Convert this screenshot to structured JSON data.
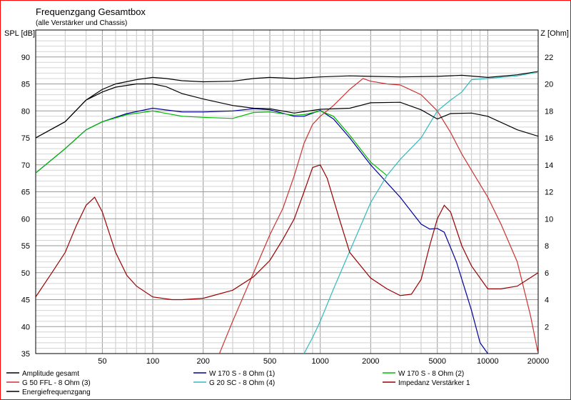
{
  "chart_data": {
    "type": "line",
    "title": "Frequenzgang Gesamtbox",
    "subtitle": "(alle Verstärker und Chassis)",
    "ylabel_left": "SPL [dB]",
    "ylabel_right": "Z [Ohm]",
    "x_scale": "log",
    "xlim": [
      20,
      20000
    ],
    "ylim_left": [
      35,
      95
    ],
    "ylim_right": [
      0,
      24
    ],
    "x_ticks": [
      {
        "v": 50,
        "label": "50"
      },
      {
        "v": 100,
        "label": "100"
      },
      {
        "v": 200,
        "label": "200"
      },
      {
        "v": 500,
        "label": "500"
      },
      {
        "v": 1000,
        "label": "1000"
      },
      {
        "v": 2000,
        "label": "2000"
      },
      {
        "v": 5000,
        "label": "5000"
      },
      {
        "v": 10000,
        "label": "10000"
      },
      {
        "v": 20000,
        "label": "20000"
      }
    ],
    "y_left_ticks": [
      35,
      40,
      45,
      50,
      55,
      60,
      65,
      70,
      75,
      80,
      85,
      90
    ],
    "y_right_ticks": [
      2,
      4,
      6,
      8,
      10,
      12,
      14,
      16,
      18,
      20,
      22
    ],
    "grid": true,
    "legend_position": "bottom",
    "series": [
      {
        "name": "Amplitude gesamt",
        "axis": "left",
        "color": "#000000",
        "points": [
          [
            20,
            75
          ],
          [
            30,
            78
          ],
          [
            40,
            82
          ],
          [
            50,
            84
          ],
          [
            60,
            85
          ],
          [
            80,
            85.8
          ],
          [
            100,
            86.2
          ],
          [
            120,
            86
          ],
          [
            150,
            85.6
          ],
          [
            200,
            85.4
          ],
          [
            300,
            85.5
          ],
          [
            400,
            86
          ],
          [
            500,
            86.2
          ],
          [
            700,
            86
          ],
          [
            1000,
            86.3
          ],
          [
            1500,
            86.5
          ],
          [
            2000,
            86.4
          ],
          [
            3000,
            86.3
          ],
          [
            5000,
            86.4
          ],
          [
            7000,
            86.6
          ],
          [
            10000,
            86.2
          ],
          [
            15000,
            86.7
          ],
          [
            20000,
            87.3
          ]
        ]
      },
      {
        "name": "W 170 S - 8 Ohm (1)",
        "axis": "left",
        "color": "#000099",
        "points": [
          [
            20,
            68.5
          ],
          [
            30,
            73
          ],
          [
            40,
            76.5
          ],
          [
            50,
            78
          ],
          [
            70,
            79.5
          ],
          [
            100,
            80.5
          ],
          [
            150,
            79.8
          ],
          [
            200,
            79.8
          ],
          [
            300,
            80
          ],
          [
            400,
            80.4
          ],
          [
            500,
            80.2
          ],
          [
            700,
            79
          ],
          [
            800,
            79
          ],
          [
            1000,
            80.1
          ],
          [
            1200,
            78.5
          ],
          [
            1500,
            75
          ],
          [
            2000,
            70
          ],
          [
            3000,
            64
          ],
          [
            4000,
            59
          ],
          [
            4500,
            58.1
          ],
          [
            5000,
            58.2
          ],
          [
            5500,
            57.5
          ],
          [
            6500,
            52
          ],
          [
            8000,
            43
          ],
          [
            9000,
            37
          ],
          [
            10000,
            35
          ]
        ]
      },
      {
        "name": "W 170 S - 8 Ohm (2)",
        "axis": "left",
        "color": "#00bb00",
        "points": [
          [
            20,
            68.5
          ],
          [
            30,
            73
          ],
          [
            40,
            76.5
          ],
          [
            50,
            78
          ],
          [
            70,
            79.3
          ],
          [
            100,
            80
          ],
          [
            150,
            79
          ],
          [
            200,
            78.8
          ],
          [
            300,
            78.6
          ],
          [
            400,
            79.7
          ],
          [
            500,
            79.8
          ],
          [
            700,
            79.2
          ],
          [
            800,
            79.3
          ],
          [
            1000,
            80
          ],
          [
            1200,
            79
          ],
          [
            1500,
            75.5
          ],
          [
            2000,
            70.5
          ],
          [
            2500,
            68
          ]
        ]
      },
      {
        "name": "G 50 FFL - 8 Ohm (3)",
        "axis": "left",
        "color": "#cc3333",
        "points": [
          [
            250,
            35
          ],
          [
            300,
            41
          ],
          [
            400,
            50
          ],
          [
            500,
            57
          ],
          [
            600,
            62
          ],
          [
            700,
            68
          ],
          [
            800,
            74
          ],
          [
            900,
            77.5
          ],
          [
            1000,
            79
          ],
          [
            1200,
            81
          ],
          [
            1500,
            84
          ],
          [
            1800,
            86
          ],
          [
            2000,
            85.5
          ],
          [
            2500,
            85
          ],
          [
            3000,
            84.8
          ],
          [
            4000,
            83
          ],
          [
            5000,
            80
          ],
          [
            6000,
            76
          ],
          [
            7000,
            72
          ],
          [
            8000,
            69
          ],
          [
            10000,
            64
          ],
          [
            12000,
            59
          ],
          [
            15000,
            52
          ],
          [
            18000,
            42
          ],
          [
            20000,
            35
          ]
        ]
      },
      {
        "name": "G 20 SC - 8 Ohm (4)",
        "axis": "left",
        "color": "#33bbbb",
        "points": [
          [
            800,
            35
          ],
          [
            900,
            38
          ],
          [
            1000,
            41
          ],
          [
            1200,
            47
          ],
          [
            1500,
            54
          ],
          [
            2000,
            63
          ],
          [
            2500,
            68
          ],
          [
            3000,
            71
          ],
          [
            4000,
            75
          ],
          [
            5000,
            80
          ],
          [
            6000,
            82
          ],
          [
            7000,
            83.5
          ],
          [
            8000,
            85.8
          ],
          [
            10000,
            86
          ],
          [
            15000,
            86.5
          ],
          [
            20000,
            87.2
          ]
        ]
      },
      {
        "name": "Impedanz Verstärker 1",
        "axis": "right",
        "color": "#990000",
        "points": [
          [
            20,
            4.2
          ],
          [
            25,
            6
          ],
          [
            30,
            7.5
          ],
          [
            35,
            9.5
          ],
          [
            40,
            11
          ],
          [
            45,
            11.6
          ],
          [
            50,
            10.5
          ],
          [
            60,
            7.5
          ],
          [
            70,
            5.8
          ],
          [
            80,
            5
          ],
          [
            100,
            4.2
          ],
          [
            130,
            4
          ],
          [
            150,
            4
          ],
          [
            200,
            4.1
          ],
          [
            300,
            4.7
          ],
          [
            400,
            5.7
          ],
          [
            500,
            6.9
          ],
          [
            600,
            8.5
          ],
          [
            700,
            10
          ],
          [
            800,
            12
          ],
          [
            900,
            13.8
          ],
          [
            1000,
            14
          ],
          [
            1100,
            13
          ],
          [
            1300,
            10
          ],
          [
            1500,
            7.5
          ],
          [
            2000,
            5.6
          ],
          [
            2500,
            4.8
          ],
          [
            3000,
            4.3
          ],
          [
            3500,
            4.4
          ],
          [
            4000,
            5.5
          ],
          [
            4500,
            8
          ],
          [
            5000,
            10
          ],
          [
            5500,
            11
          ],
          [
            6000,
            10.5
          ],
          [
            7000,
            8
          ],
          [
            8000,
            6.5
          ],
          [
            10000,
            4.8
          ],
          [
            12000,
            4.8
          ],
          [
            15000,
            5
          ],
          [
            20000,
            6
          ]
        ]
      },
      {
        "name": "Energiefrequenzgang",
        "axis": "left",
        "color": "#000000",
        "points": [
          [
            20,
            75
          ],
          [
            30,
            78
          ],
          [
            40,
            82
          ],
          [
            50,
            83.5
          ],
          [
            60,
            84.4
          ],
          [
            80,
            85
          ],
          [
            100,
            85
          ],
          [
            120,
            84.5
          ],
          [
            150,
            83.2
          ],
          [
            200,
            82.2
          ],
          [
            300,
            81
          ],
          [
            400,
            80.5
          ],
          [
            500,
            80.4
          ],
          [
            700,
            79.6
          ],
          [
            1000,
            80.3
          ],
          [
            1500,
            80.5
          ],
          [
            2000,
            81.5
          ],
          [
            3000,
            81.6
          ],
          [
            4000,
            80.2
          ],
          [
            5000,
            78.5
          ],
          [
            6000,
            79.5
          ],
          [
            8000,
            79.6
          ],
          [
            10000,
            79
          ],
          [
            15000,
            76.5
          ],
          [
            20000,
            75.3
          ]
        ]
      }
    ],
    "legend": [
      {
        "label": "Amplitude gesamt",
        "color": "#000000"
      },
      {
        "label": "W 170 S - 8 Ohm (1)",
        "color": "#000099"
      },
      {
        "label": "W 170 S - 8 Ohm (2)",
        "color": "#00bb00"
      },
      {
        "label": "G 50 FFL - 8 Ohm (3)",
        "color": "#cc3333"
      },
      {
        "label": "G 20 SC - 8 Ohm (4)",
        "color": "#33bbbb"
      },
      {
        "label": "Impedanz Verstärker 1",
        "color": "#990000"
      },
      {
        "label": "Energiefrequenzgang",
        "color": "#000000"
      }
    ]
  }
}
